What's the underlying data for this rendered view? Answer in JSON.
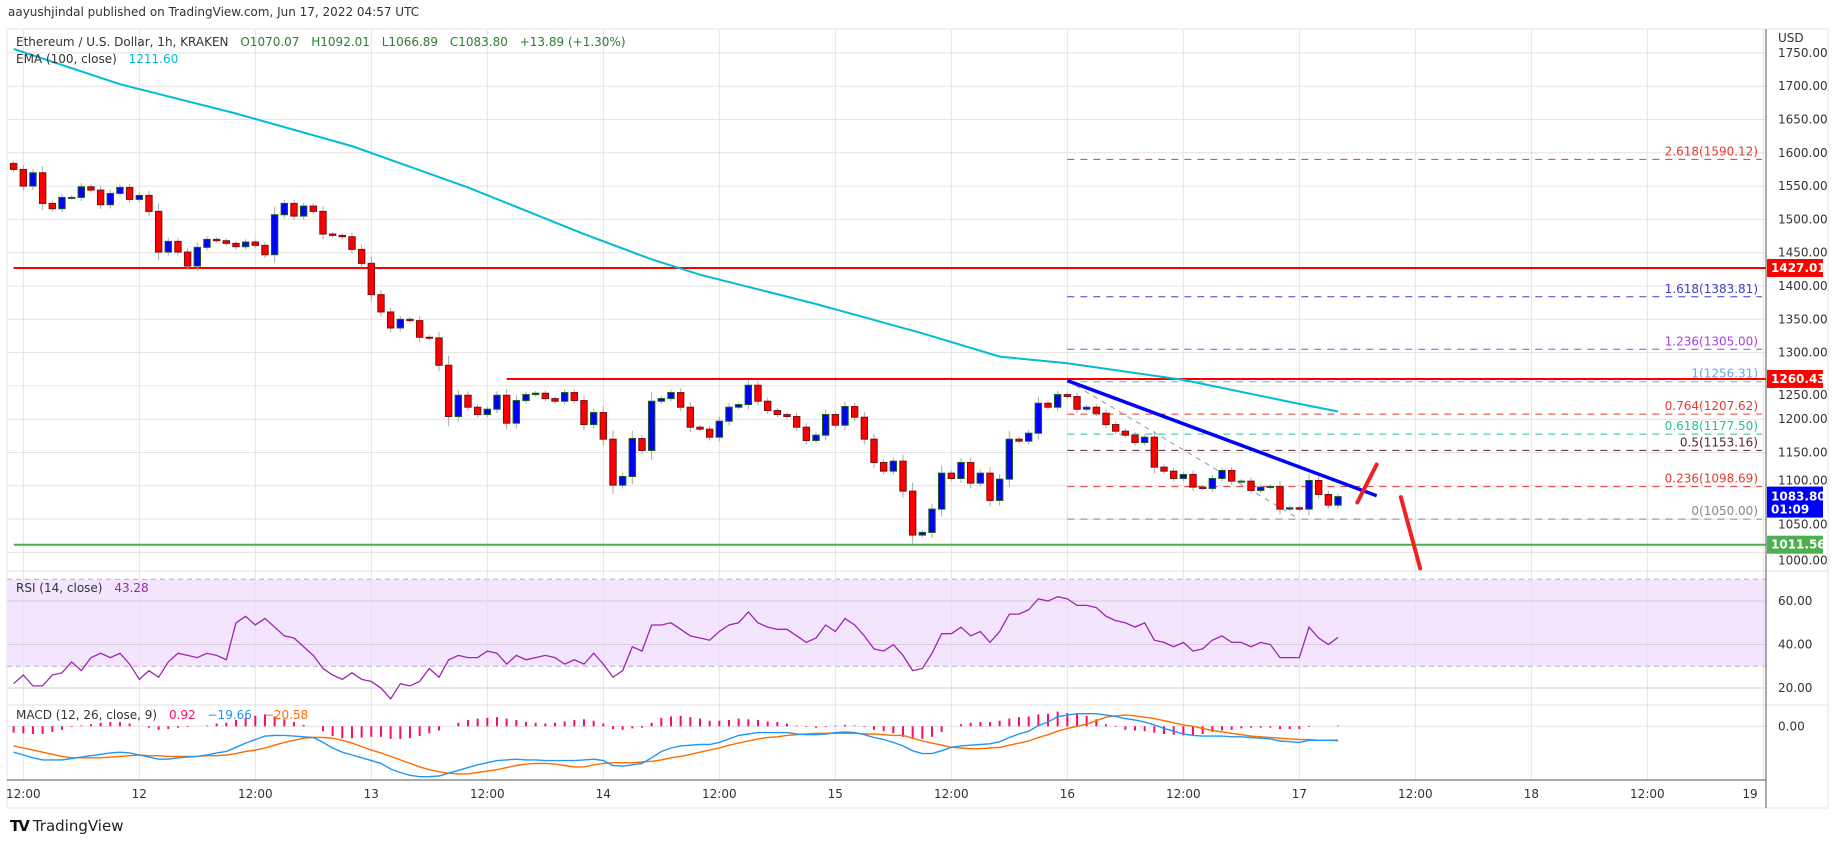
{
  "header": {
    "published": "aayushjindal published on TradingView.com, Jun 17, 2022 04:57 UTC"
  },
  "legend": {
    "symbol": "Ethereum / U.S. Dollar, 1h, KRAKEN",
    "open": "O1070.07",
    "high": "H1092.01",
    "low": "L1066.89",
    "close": "C1083.80",
    "change": "+13.89 (+1.30%)",
    "ema_label": "EMA (100, close)",
    "ema_value": "1211.60",
    "rsi_label": "RSI (14, close)",
    "rsi_value": "43.28",
    "macd_label": "MACD (12, 26, close, 9)",
    "macd_hist": "0.92",
    "macd_value": "−19.66",
    "macd_signal": "−20.58"
  },
  "axis": {
    "currency": "USD",
    "price_ticks": [
      "1000.00",
      "1050.00",
      "1100.00",
      "1150.00",
      "1200.00",
      "1250.00",
      "1300.00",
      "1350.00",
      "1400.00",
      "1450.00",
      "1500.00",
      "1550.00",
      "1600.00",
      "1650.00",
      "1700.00",
      "1750.00"
    ],
    "rsi_ticks": [
      "20.00",
      "40.00",
      "60.00"
    ],
    "macd_ticks": [
      "0.00"
    ],
    "time_ticks": [
      "12:00",
      "12",
      "12:00",
      "13",
      "12:00",
      "14",
      "12:00",
      "15",
      "12:00",
      "16",
      "12:00",
      "17",
      "12:00",
      "18",
      "12:00",
      "19"
    ]
  },
  "badges": {
    "resistance_1": "1427.01",
    "resistance_2": "1260.43",
    "last_price": "1083.80",
    "countdown": "01:09",
    "support": "1011.56"
  },
  "colors": {
    "up": "#0000ff",
    "down": "#ff0000",
    "ema": "#00bcd4",
    "rsi": "#9c27b0",
    "macd": "#2196f3",
    "signal": "#ff6d00",
    "hist": "#ff0a6c",
    "support": "#4caf50",
    "resistance": "#ff0000",
    "trendline": "#0000ff"
  },
  "chart_data": {
    "type": "candlestick",
    "symbol": "ETH/USD",
    "interval": "1h",
    "exchange": "KRAKEN",
    "time_start": "Jun 11 11:00",
    "first_open": 1584,
    "ylim": [
      1000,
      1773
    ],
    "close": [
      1575,
      1550,
      1570,
      1524,
      1516,
      1533,
      1533,
      1549,
      1544,
      1522,
      1539,
      1548,
      1530,
      1536,
      1512,
      1451,
      1467,
      1451,
      1430,
      1458,
      1470,
      1468,
      1464,
      1459,
      1466,
      1461,
      1447,
      1507,
      1524,
      1505,
      1520,
      1512,
      1478,
      1476,
      1474,
      1455,
      1434,
      1387,
      1361,
      1337,
      1350,
      1348,
      1323,
      1322,
      1281,
      1204,
      1236,
      1218,
      1207,
      1215,
      1236,
      1194,
      1228,
      1237,
      1239,
      1231,
      1227,
      1240,
      1228,
      1192,
      1210,
      1170,
      1101,
      1114,
      1171,
      1153,
      1227,
      1231,
      1240,
      1218,
      1188,
      1185,
      1173,
      1197,
      1218,
      1222,
      1251,
      1227,
      1213,
      1207,
      1204,
      1188,
      1168,
      1176,
      1207,
      1191,
      1219,
      1203,
      1170,
      1135,
      1122,
      1137,
      1092,
      1026,
      1030,
      1065,
      1119,
      1111,
      1135,
      1104,
      1119,
      1078,
      1110,
      1170,
      1167,
      1179,
      1224,
      1218,
      1237,
      1234,
      1215,
      1218,
      1209,
      1192,
      1182,
      1176,
      1165,
      1173,
      1128,
      1122,
      1111,
      1117,
      1098,
      1096,
      1111,
      1123,
      1107,
      1107,
      1093,
      1098,
      1099,
      1065,
      1067,
      1065,
      1108,
      1087,
      1071,
      1083.8
    ],
    "ema100": [
      [
        "Jun 11 11:00",
        1756
      ],
      [
        "Jun 11 22:00",
        1703
      ],
      [
        "Jun 12 10:00",
        1659
      ],
      [
        "Jun 12 22:00",
        1610
      ],
      [
        "Jun 13 10:00",
        1548
      ],
      [
        "Jun 13 22:00",
        1478
      ],
      [
        "Jun 14 05:00",
        1440
      ],
      [
        "Jun 14 10:00",
        1417
      ],
      [
        "Jun 14 22:00",
        1373
      ],
      [
        "Jun 15 09:00",
        1329
      ],
      [
        "Jun 15 17:00",
        1294
      ],
      [
        "Jun 16 00:00",
        1284
      ],
      [
        "Jun 16 12:00",
        1259
      ],
      [
        "Jun 17 00:00",
        1223
      ],
      [
        "Jun 17 04:00",
        1211.6
      ]
    ],
    "rsi": [
      22,
      26,
      21,
      21,
      26,
      27,
      32,
      28,
      34,
      36,
      34,
      36,
      31,
      24,
      28,
      25,
      32,
      36,
      35,
      34,
      36,
      35,
      33,
      50,
      53,
      49,
      52,
      48,
      44,
      43,
      39,
      35,
      29,
      26,
      24,
      27,
      24,
      23,
      20,
      15,
      22,
      21,
      23,
      29,
      25,
      33,
      35,
      34,
      34,
      37,
      36,
      31,
      35,
      33,
      34,
      35,
      34,
      31,
      33,
      31,
      36,
      31,
      25,
      28,
      39,
      37,
      49,
      49,
      50,
      47,
      44,
      43,
      42,
      46,
      49,
      50,
      55,
      50,
      48,
      47,
      47,
      44,
      41,
      43,
      49,
      46,
      52,
      49,
      44,
      38,
      37,
      40,
      35,
      28,
      29,
      36,
      45,
      45,
      48,
      44,
      46,
      41,
      46,
      54,
      54,
      56,
      61,
      60,
      62,
      61,
      58,
      58,
      57,
      53,
      51,
      50,
      48,
      50,
      42,
      41,
      39,
      41,
      37,
      38,
      42,
      44,
      41,
      41,
      39,
      41,
      40,
      34,
      34,
      34,
      48,
      43,
      40,
      43.28
    ],
    "rsi_bands": [
      70,
      30
    ],
    "macd": [
      -37,
      -41,
      -45,
      -48,
      -48,
      -48,
      -46,
      -44,
      -42,
      -40,
      -38,
      -37,
      -38,
      -41,
      -44,
      -47,
      -47,
      -45,
      -44,
      -43,
      -41,
      -38,
      -36,
      -30,
      -24,
      -19,
      -14,
      -13,
      -13,
      -14,
      -15,
      -16,
      -23,
      -31,
      -37,
      -41,
      -45,
      -49,
      -53,
      -61,
      -66,
      -70,
      -72,
      -72,
      -71,
      -67,
      -63,
      -59,
      -55,
      -52,
      -49,
      -48,
      -47,
      -48,
      -48,
      -49,
      -49,
      -49,
      -49,
      -48,
      -47,
      -49,
      -56,
      -57,
      -55,
      -53,
      -45,
      -36,
      -31,
      -28,
      -27,
      -26,
      -26,
      -23,
      -18,
      -13,
      -11,
      -9,
      -9,
      -9,
      -9,
      -11,
      -12,
      -12,
      -11,
      -9,
      -8,
      -9,
      -12,
      -16,
      -19,
      -23,
      -28,
      -35,
      -39,
      -39,
      -35,
      -30,
      -28,
      -27,
      -26,
      -25,
      -22,
      -16,
      -11,
      -7,
      1,
      6,
      14,
      16,
      18,
      18,
      18,
      16,
      14,
      11,
      9,
      6,
      2,
      -3,
      -7,
      -11,
      -13,
      -14,
      -14,
      -14,
      -15,
      -15,
      -16,
      -17,
      -18,
      -21,
      -22,
      -23,
      -20,
      -20,
      -20,
      -19.66
    ],
    "signal": [
      -28,
      -31,
      -34,
      -37,
      -40,
      -43,
      -45,
      -45,
      -45,
      -45,
      -44,
      -43,
      -42,
      -41,
      -42,
      -42,
      -43,
      -43,
      -43,
      -43,
      -42,
      -42,
      -41,
      -39,
      -36,
      -34,
      -31,
      -27,
      -23,
      -20,
      -17,
      -16,
      -16,
      -17,
      -20,
      -24,
      -29,
      -34,
      -38,
      -43,
      -48,
      -53,
      -58,
      -62,
      -65,
      -67,
      -68,
      -68,
      -66,
      -64,
      -62,
      -59,
      -56,
      -54,
      -53,
      -53,
      -54,
      -56,
      -58,
      -58,
      -55,
      -53,
      -52,
      -52,
      -52,
      -51,
      -50,
      -48,
      -45,
      -43,
      -40,
      -37,
      -34,
      -31,
      -27,
      -24,
      -21,
      -18,
      -16,
      -15,
      -13,
      -12,
      -11,
      -10,
      -10,
      -10,
      -10,
      -10,
      -11,
      -11,
      -12,
      -13,
      -13,
      -17,
      -21,
      -24,
      -27,
      -30,
      -31,
      -32,
      -32,
      -31,
      -30,
      -27,
      -24,
      -21,
      -16,
      -12,
      -7,
      -3,
      0,
      3,
      8,
      13,
      15,
      16,
      15,
      13,
      11,
      8,
      5,
      2,
      0,
      -3,
      -6,
      -8,
      -10,
      -12,
      -14,
      -15,
      -16,
      -17,
      -18,
      -19,
      -19,
      -20,
      -20,
      -20.58
    ],
    "horizontal_lines": [
      {
        "price": 1427.01,
        "color": "#ff0000",
        "from": "Jun 11 11:00"
      },
      {
        "price": 1260.43,
        "color": "#ff0000",
        "from": "Jun 13 14:00"
      },
      {
        "price": 1011.56,
        "color": "#4caf50",
        "from": "Jun 11 11:00"
      }
    ],
    "trendline": {
      "from": [
        "Jun 16 00:00",
        1258
      ],
      "to": [
        "Jun 17 08:00",
        1085
      ],
      "color": "#0000ff"
    },
    "fib_swing": {
      "from": [
        "Jun 16 00:00",
        1258
      ],
      "to": [
        "Jun 17 00:00",
        1050
      ]
    },
    "fib_start": "Jun 16 00:00",
    "fib_levels": [
      {
        "label": "2.618(1590.12)",
        "price": 1590.12,
        "color": "#e53935"
      },
      {
        "label": "1.618(1383.81)",
        "price": 1383.81,
        "color": "#3f3fc8"
      },
      {
        "label": "1.236(1305.00)",
        "price": 1305.0,
        "color": "#a73fe0"
      },
      {
        "label": "1(1256.31)",
        "price": 1256.31,
        "color": "#64a8e0"
      },
      {
        "label": "0.764(1207.62)",
        "price": 1207.62,
        "color": "#e53935"
      },
      {
        "label": "0.618(1177.50)",
        "price": 1177.5,
        "color": "#1fc49a"
      },
      {
        "label": "0.5(1153.16)",
        "price": 1153.16,
        "color": "#5a1e3a"
      },
      {
        "label": "0.236(1098.69)",
        "price": 1098.69,
        "color": "#e53935"
      },
      {
        "label": "0(1050.00)",
        "price": 1050.0,
        "color": "#888888"
      }
    ],
    "arrows": [
      {
        "from": [
          "Jun 17 06:00",
          1075
        ],
        "to": [
          "Jun 17 08:00",
          1132
        ]
      },
      {
        "from": [
          "Jun 17 10:30",
          1083
        ],
        "to": [
          "Jun 17 12:30",
          976
        ]
      }
    ]
  },
  "footer": {
    "brand": "TradingView"
  }
}
